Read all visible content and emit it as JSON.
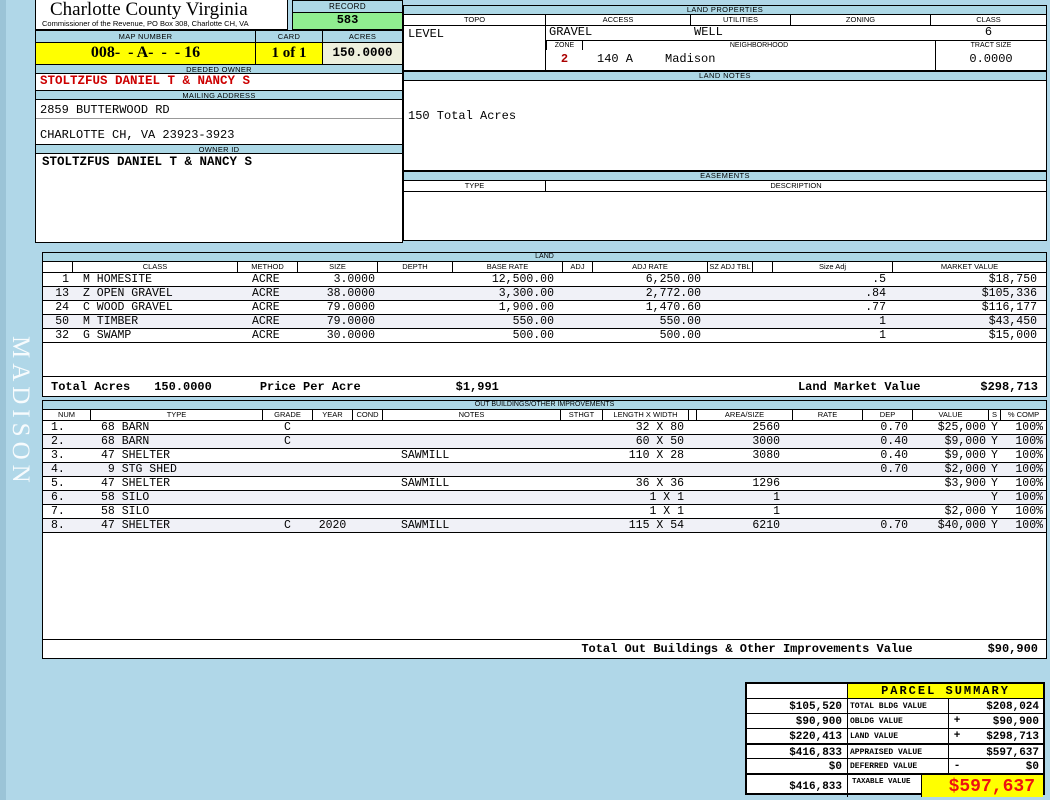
{
  "colors": {
    "page_bg": "#b0d7e8",
    "section_bar_blue": "#add8e6",
    "highlight_yellow": "#ffff00",
    "record_green": "#90ee90",
    "acres_cream": "#eef0dd",
    "owner_red": "#cc0000",
    "taxable_red": "#ee1111"
  },
  "watermark": "MADISON",
  "header": {
    "county_title": "Charlotte County Virginia",
    "commissioner_line": "Commissioner of the Revenue, PO Box 308, Charlotte CH, VA",
    "record_label": "RECORD",
    "record_value": "583",
    "map_number_label": "MAP NUMBER",
    "map_number": "008-  - A-  -  - 16",
    "card_label": "CARD",
    "card_value": "1 of 1",
    "acres_label": "ACRES",
    "acres_value": "150.0000"
  },
  "owner": {
    "deeded_owner_label": "DEEDED OWNER",
    "deeded_owner": "STOLTZFUS DANIEL T & NANCY S",
    "mailing_address_label": "MAILING ADDRESS",
    "address_line1": "2859 BUTTERWOOD RD",
    "address_line2": "CHARLOTTE CH, VA 23923-3923",
    "owner_id_label": "OWNER ID",
    "owner_id": "STOLTZFUS DANIEL T & NANCY S"
  },
  "land_properties": {
    "section_label": "LAND PROPERTIES",
    "topo_label": "TOPO",
    "topo": "LEVEL",
    "access_label": "ACCESS",
    "access": "GRAVEL",
    "utilities_label": "UTILITIES",
    "utilities": "WELL",
    "zoning_label": "ZONING",
    "zoning": "",
    "class_label": "CLASS",
    "class_value": "6",
    "zone_label": "ZONE",
    "zone_value": "2",
    "zone_code": "140 A",
    "neighborhood_label": "NEIGHBORHOOD",
    "neighborhood": "Madison",
    "tract_size_label": "TRACT SIZE",
    "tract_size": "0.0000"
  },
  "land_notes": {
    "section_label": "LAND NOTES",
    "note": "150 Total Acres"
  },
  "easements": {
    "section_label": "EASEMENTS",
    "type_label": "TYPE",
    "description_label": "DESCRIPTION"
  },
  "land": {
    "section_label": "LAND",
    "headers": {
      "cls": "CLASS",
      "method": "METHOD",
      "size": "SIZE",
      "depth": "DEPTH",
      "base": "BASE RATE",
      "adj": "ADJ",
      "adjrate": "ADJ RATE",
      "sztbl": "SZ ADJ TBL",
      "sizeadj": "Size Adj",
      "mkt": "MARKET VALUE"
    },
    "rows": [
      {
        "num": "1",
        "cls": "M HOMESITE",
        "method": "ACRE",
        "size": "3.0000",
        "depth": "",
        "base": "12,500.00",
        "adj": "",
        "adjrate": "6,250.00",
        "sztbl": "",
        "sizeadj": ".5",
        "mkt": "$18,750"
      },
      {
        "num": "13",
        "cls": "Z OPEN GRAVEL",
        "method": "ACRE",
        "size": "38.0000",
        "depth": "",
        "base": "3,300.00",
        "adj": "",
        "adjrate": "2,772.00",
        "sztbl": "",
        "sizeadj": ".84",
        "mkt": "$105,336"
      },
      {
        "num": "24",
        "cls": "C WOOD GRAVEL",
        "method": "ACRE",
        "size": "79.0000",
        "depth": "",
        "base": "1,900.00",
        "adj": "",
        "adjrate": "1,470.60",
        "sztbl": "",
        "sizeadj": ".77",
        "mkt": "$116,177"
      },
      {
        "num": "50",
        "cls": "M TIMBER",
        "method": "ACRE",
        "size": "79.0000",
        "depth": "",
        "base": "550.00",
        "adj": "",
        "adjrate": "550.00",
        "sztbl": "",
        "sizeadj": "1",
        "mkt": "$43,450"
      },
      {
        "num": "32",
        "cls": "G SWAMP",
        "method": "ACRE",
        "size": "30.0000",
        "depth": "",
        "base": "500.00",
        "adj": "",
        "adjrate": "500.00",
        "sztbl": "",
        "sizeadj": "1",
        "mkt": "$15,000"
      }
    ],
    "totals": {
      "total_acres_label": "Total Acres",
      "total_acres": "150.0000",
      "price_per_acre_label": "Price Per Acre",
      "price_per_acre": "$1,991",
      "market_label": "Land Market Value",
      "market_value": "$298,713"
    }
  },
  "outbuildings": {
    "section_label": "OUT BUILDINGS/OTHER IMPROVEMENTS",
    "headers": {
      "num": "NUM",
      "type": "TYPE",
      "grade": "GRADE",
      "year": "YEAR",
      "cond": "COND",
      "notes": "NOTES",
      "sthgt": "STHGT",
      "lxw": "LENGTH X WIDTH",
      "area": "AREA/SIZE",
      "rate": "RATE",
      "dep": "DEP",
      "value": "VALUE",
      "s": "S",
      "comp": "% COMP"
    },
    "rows": [
      {
        "num": "1.",
        "type": "68 BARN",
        "grade": "C",
        "year": "",
        "cond": "",
        "notes": "",
        "sthgt": "",
        "lxw": "32 X 80",
        "area": "2560",
        "rate": "",
        "dep": "0.70",
        "value": "$25,000",
        "s": "Y",
        "comp": "100%"
      },
      {
        "num": "2.",
        "type": "68 BARN",
        "grade": "C",
        "year": "",
        "cond": "",
        "notes": "",
        "sthgt": "",
        "lxw": "60 X 50",
        "area": "3000",
        "rate": "",
        "dep": "0.40",
        "value": "$9,000",
        "s": "Y",
        "comp": "100%"
      },
      {
        "num": "3.",
        "type": "47 SHELTER",
        "grade": "",
        "year": "",
        "cond": "",
        "notes": "SAWMILL",
        "sthgt": "",
        "lxw": "110 X 28",
        "area": "3080",
        "rate": "",
        "dep": "0.40",
        "value": "$9,000",
        "s": "Y",
        "comp": "100%"
      },
      {
        "num": "4.",
        "type": " 9 STG SHED",
        "grade": "",
        "year": "",
        "cond": "",
        "notes": "",
        "sthgt": "",
        "lxw": "",
        "area": "",
        "rate": "",
        "dep": "0.70",
        "value": "$2,000",
        "s": "Y",
        "comp": "100%"
      },
      {
        "num": "5.",
        "type": "47 SHELTER",
        "grade": "",
        "year": "",
        "cond": "",
        "notes": "SAWMILL",
        "sthgt": "",
        "lxw": "36 X 36",
        "area": "1296",
        "rate": "",
        "dep": "",
        "value": "$3,900",
        "s": "Y",
        "comp": "100%"
      },
      {
        "num": "6.",
        "type": "58 SILO",
        "grade": "",
        "year": "",
        "cond": "",
        "notes": "",
        "sthgt": "",
        "lxw": "1 X 1",
        "area": "1",
        "rate": "",
        "dep": "",
        "value": "",
        "s": "Y",
        "comp": "100%"
      },
      {
        "num": "7.",
        "type": "58 SILO",
        "grade": "",
        "year": "",
        "cond": "",
        "notes": "",
        "sthgt": "",
        "lxw": "1 X 1",
        "area": "1",
        "rate": "",
        "dep": "",
        "value": "$2,000",
        "s": "Y",
        "comp": "100%"
      },
      {
        "num": "8.",
        "type": "47 SHELTER",
        "grade": "C",
        "year": "2020",
        "cond": "",
        "notes": "SAWMILL",
        "sthgt": "",
        "lxw": "115 X 54",
        "area": "6210",
        "rate": "",
        "dep": "0.70",
        "value": "$40,000",
        "s": "Y",
        "comp": "100%"
      }
    ],
    "total_label": "Total Out Buildings & Other Improvements Value",
    "total_value": "$90,900"
  },
  "parcel_summary": {
    "title": "PARCEL SUMMARY",
    "rows": [
      {
        "left": "$105,520",
        "label": "TOTAL BLDG VALUE",
        "sign": "",
        "right": "$208,024"
      },
      {
        "left": "$90,900",
        "label": "OBLDG VALUE",
        "sign": "+",
        "right": "$90,900"
      },
      {
        "left": "$220,413",
        "label": "LAND VALUE",
        "sign": "+",
        "right": "$298,713"
      },
      {
        "left": "$416,833",
        "label": "APPRAISED VALUE",
        "sign": "",
        "right": "$597,637"
      },
      {
        "left": "$0",
        "label": "DEFERRED VALUE",
        "sign": "-",
        "right": "$0"
      }
    ],
    "taxable": {
      "left": "$416,833",
      "label": "TAXABLE VALUE",
      "value": "$597,637"
    }
  }
}
